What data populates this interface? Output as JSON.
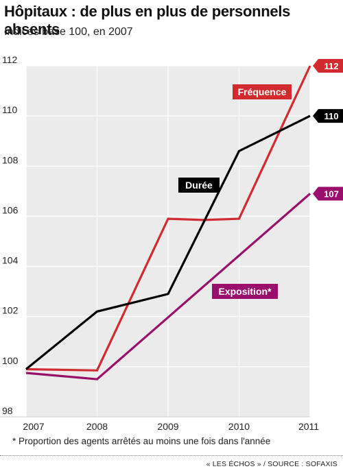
{
  "chart_data": {
    "type": "line",
    "title": "Hôpitaux : de plus en plus de personnels absents",
    "subtitle": "Indices base 100, en 2007",
    "x": [
      2007,
      2008,
      2009,
      2010,
      2011
    ],
    "x_tick_labels": [
      "2007",
      "2008",
      "2009",
      "2010",
      "2011"
    ],
    "y_tick_labels": [
      "98",
      "100",
      "102",
      "104",
      "106",
      "108",
      "110",
      "112"
    ],
    "ylim": [
      98,
      112
    ],
    "grid": true,
    "series": [
      {
        "name": "Durée",
        "color": "#000000",
        "points": [
          [
            2007,
            99.9
          ],
          [
            2008,
            102.2
          ],
          [
            2009,
            102.9
          ],
          [
            2010,
            108.6
          ],
          [
            2011,
            110
          ]
        ],
        "end_label": "110"
      },
      {
        "name": "Fréquence",
        "color": "#d12b2f",
        "points": [
          [
            2007,
            99.9
          ],
          [
            2008,
            99.85
          ],
          [
            2009,
            105.9
          ],
          [
            2009.5,
            105.85
          ],
          [
            2010,
            105.9
          ],
          [
            2011,
            112
          ]
        ],
        "end_label": "112"
      },
      {
        "name": "Exposition*",
        "color": "#9a0f6b",
        "points": [
          [
            2007,
            99.75
          ],
          [
            2008,
            99.5
          ],
          [
            2011,
            106.9
          ]
        ],
        "end_label": "107"
      }
    ],
    "footnote": "* Proportion des agents arrêtés au moins une fois dans l'année",
    "credit": "« LES ÉCHOS » / SOURCE : SOFAXIS"
  }
}
